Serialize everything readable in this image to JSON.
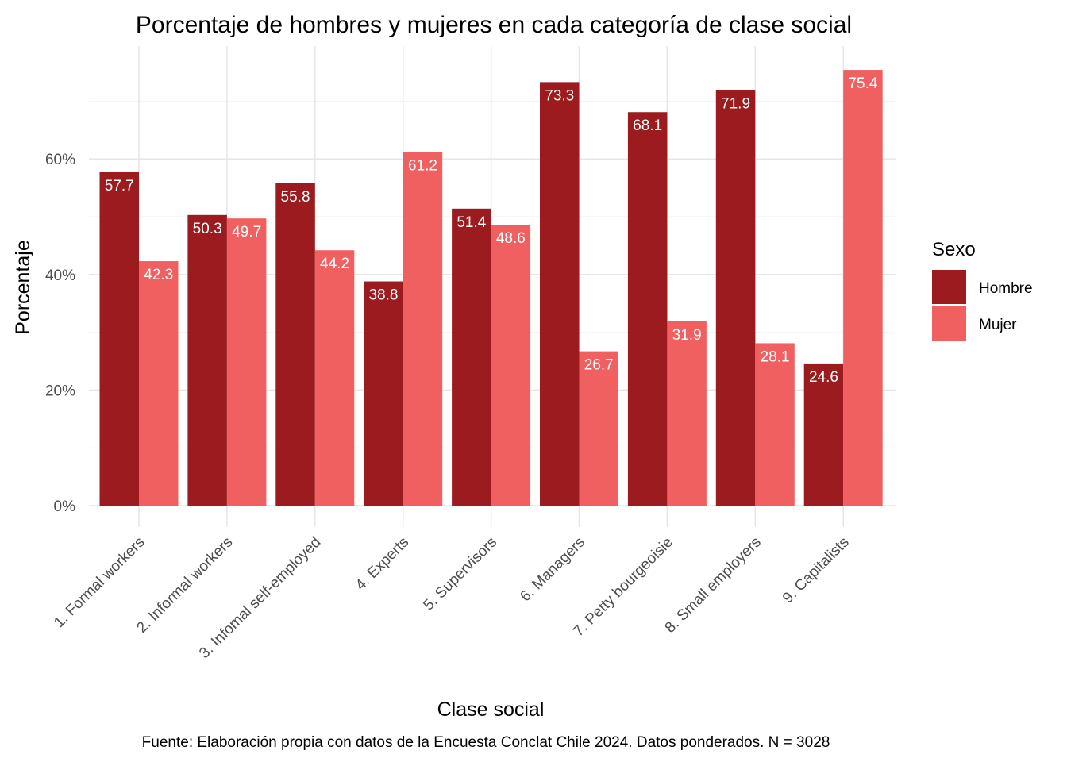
{
  "chart_data": {
    "type": "bar",
    "title": "Porcentaje de hombres y mujeres en cada categoría de clase social",
    "xlabel": "Clase social",
    "ylabel": "Porcentaje",
    "caption": "Fuente: Elaboración propia con datos de la Encuesta Conclat Chile 2024. Datos ponderados. N = 3028",
    "ylim": [
      0,
      79
    ],
    "yticks": [
      0,
      20,
      40,
      60
    ],
    "ytick_labels": [
      "0%",
      "20%",
      "40%",
      "60%"
    ],
    "grid": true,
    "legend_position": "right",
    "legend_title": "Sexo",
    "categories": [
      "1. Formal workers",
      "2. Informal workers",
      "3. Infomal self-employed",
      "4. Experts",
      "5. Supervisors",
      "6. Managers",
      "7. Petty bourgeoisie",
      "8. Small employers",
      "9. Capitalists"
    ],
    "series": [
      {
        "name": "Hombre",
        "color": "#9B1B1F",
        "values": [
          57.7,
          50.3,
          55.8,
          38.8,
          51.4,
          73.3,
          68.1,
          71.9,
          24.6
        ],
        "labels": [
          "57.7",
          "50.3",
          "55.8",
          "38.8",
          "51.4",
          "73.3",
          "68.1",
          "71.9",
          "24.6"
        ]
      },
      {
        "name": "Mujer",
        "color": "#F06060",
        "values": [
          42.3,
          49.7,
          44.2,
          61.2,
          48.6,
          26.7,
          31.9,
          28.1,
          75.4
        ],
        "labels": [
          "42.3",
          "49.7",
          "44.2",
          "61.2",
          "48.6",
          "26.7",
          "31.9",
          "28.1",
          "75.4"
        ]
      }
    ]
  }
}
